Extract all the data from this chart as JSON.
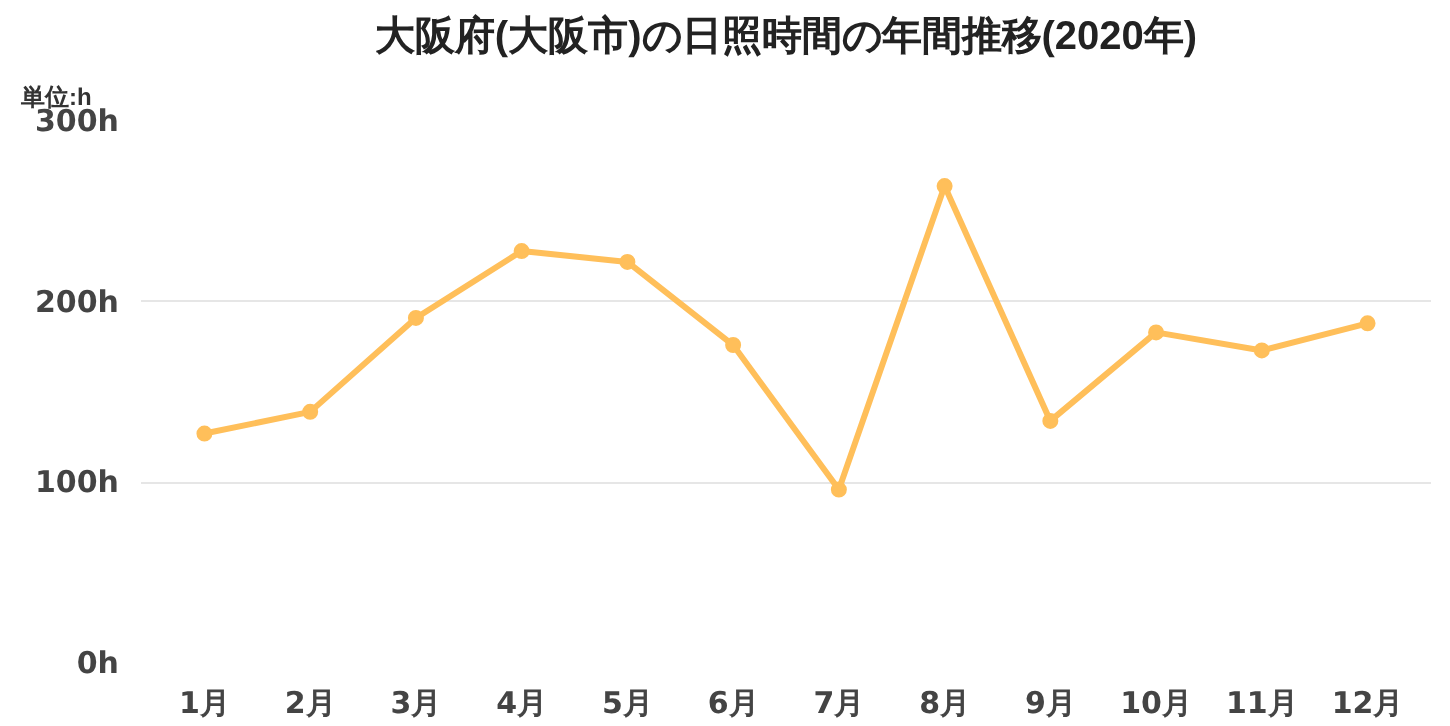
{
  "chart_data": {
    "type": "line",
    "title": "大阪府(大阪市)の日照時間の年間推移(2020年)",
    "annotations": [
      "単位:h"
    ],
    "categories": [
      "1月",
      "2月",
      "3月",
      "4月",
      "5月",
      "6月",
      "7月",
      "8月",
      "9月",
      "10月",
      "11月",
      "12月"
    ],
    "series": [
      {
        "color": "#ffbf5a",
        "values": [
          127,
          139,
          191,
          228,
          222,
          176,
          96,
          264,
          134,
          183,
          173,
          188
        ]
      }
    ],
    "ylim": [
      0,
      300
    ],
    "yticks": [
      {
        "value": 0,
        "label": "0h"
      },
      {
        "value": 100,
        "label": "100h"
      },
      {
        "value": 200,
        "label": "200h"
      },
      {
        "value": 300,
        "label": "300h"
      }
    ],
    "grid": "y",
    "marker": "circle",
    "line_style": "solid"
  }
}
